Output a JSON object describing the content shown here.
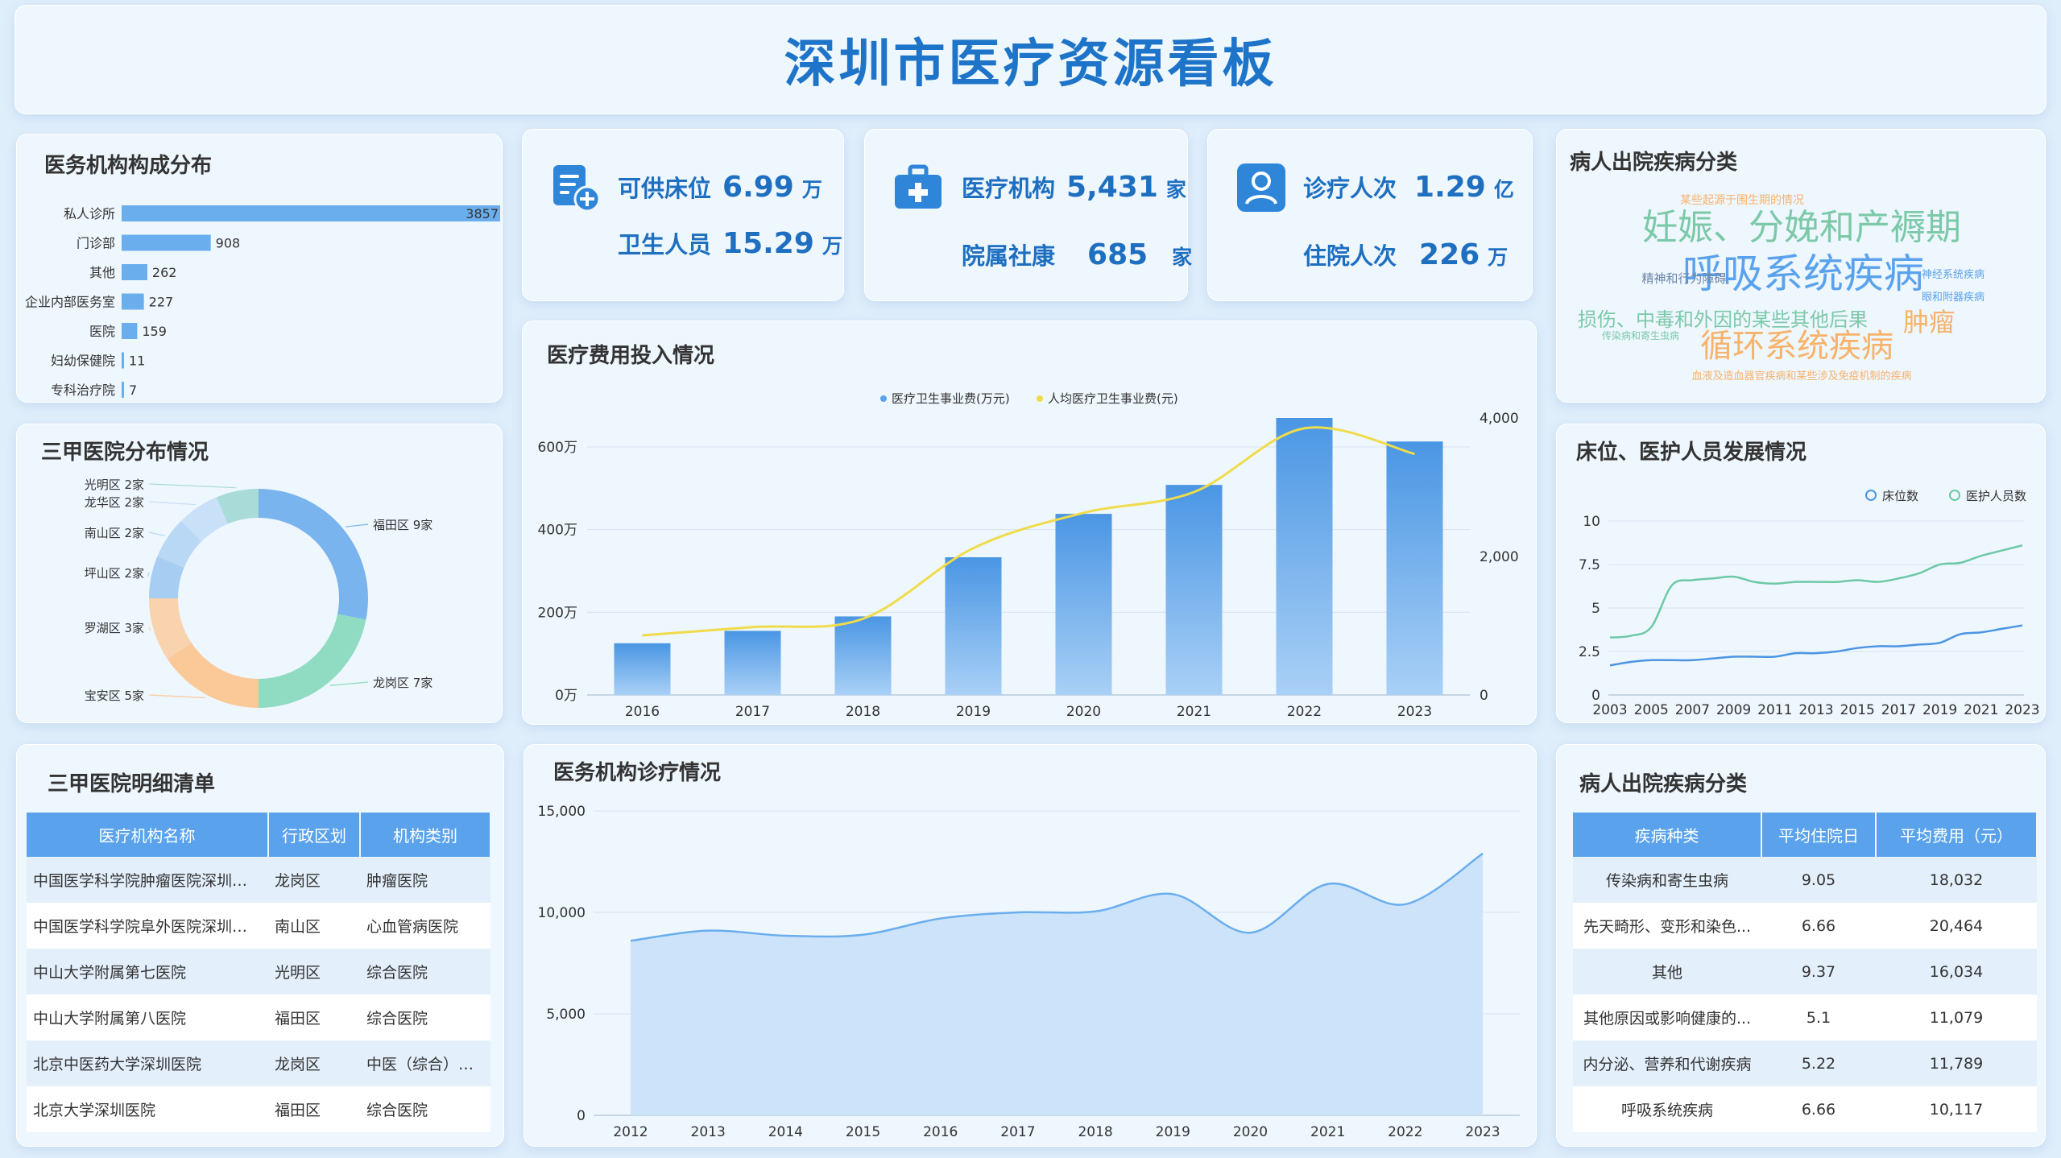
{
  "title": "深圳市医疗资源看板",
  "kpis": {
    "beds": {
      "label": "可供床位",
      "value": "6.99",
      "unit": "万"
    },
    "staff": {
      "label": "卫生人员",
      "value": "15.29",
      "unit": "万"
    },
    "institutions": {
      "label": "医疗机构",
      "value": "5,431",
      "unit": "家"
    },
    "community": {
      "label": "院属社康",
      "value": "685",
      "unit": "家"
    },
    "visits": {
      "label": "诊疗人次",
      "value": "1.29",
      "unit": "亿"
    },
    "inpatients": {
      "label": "住院人次",
      "value": "226",
      "unit": "万"
    }
  },
  "panels": {
    "institution_dist": "医务机构构成分布",
    "tertiary_dist": "三甲医院分布情况",
    "tertiary_list": "三甲医院明细清单",
    "expense": "医疗费用投入情况",
    "visits": "医务机构诊疗情况",
    "wordcloud": "病人出院疾病分类",
    "beds_staff": "床位、医护人员发展情况",
    "disease_table": "病人出院疾病分类"
  },
  "colors": {
    "primary": "#1e74c8",
    "bar": "#5aa3ec",
    "line": "#f0dc4a",
    "green": "#5cc9a0"
  },
  "chart_data": [
    {
      "id": "institution_dist",
      "type": "bar",
      "orientation": "horizontal",
      "categories": [
        "私人诊所",
        "门诊部",
        "其他",
        "企业内部医务室",
        "医院",
        "妇幼保健院",
        "专科治疗院"
      ],
      "values": [
        3857,
        908,
        262,
        227,
        159,
        11,
        7
      ]
    },
    {
      "id": "tertiary_dist",
      "type": "pie",
      "labels": [
        "福田区 9家",
        "龙岗区 7家",
        "宝安区 5家",
        "罗湖区 3家",
        "坪山区 2家",
        "南山区 2家",
        "龙华区 2家",
        "光明区 2家"
      ],
      "values": [
        9,
        7,
        5,
        3,
        2,
        2,
        2,
        2
      ],
      "colors": [
        "#7ab4ee",
        "#8fdcc2",
        "#fbc998",
        "#f9d3ad",
        "#a7cdf3",
        "#b9d8f6",
        "#c8e0f8",
        "#a9dcd8"
      ]
    },
    {
      "id": "expense",
      "type": "bar",
      "categories": [
        "2016",
        "2017",
        "2018",
        "2019",
        "2020",
        "2021",
        "2022",
        "2023"
      ],
      "series": [
        {
          "name": "医疗卫生事业费(万元)",
          "type": "bar",
          "values": [
            1250000,
            1550000,
            1900000,
            3330000,
            4380000,
            5080000,
            6700000,
            6130000
          ]
        },
        {
          "name": "人均医疗卫生事业费(元)",
          "type": "line",
          "axis": "right",
          "values": [
            860,
            980,
            1100,
            2120,
            2630,
            2930,
            3850,
            3480
          ]
        }
      ],
      "y_ticks": [
        "0万",
        "200万",
        "400万",
        "600万"
      ],
      "y2_ticks": [
        "0",
        "2,000",
        "4,000"
      ],
      "ylim": [
        0,
        6700000
      ],
      "y2lim": [
        0,
        4000
      ]
    },
    {
      "id": "visits",
      "type": "area",
      "x": [
        "2012",
        "2013",
        "2014",
        "2015",
        "2016",
        "2017",
        "2018",
        "2019",
        "2020",
        "2021",
        "2022",
        "2023"
      ],
      "values": [
        8600,
        9100,
        8850,
        8900,
        9700,
        10000,
        10050,
        10900,
        9000,
        11400,
        10400,
        12900
      ],
      "y_ticks": [
        "0",
        "5,000",
        "10,000",
        "15,000"
      ],
      "ylim": [
        0,
        15000
      ]
    },
    {
      "id": "beds_staff",
      "type": "line",
      "x": [
        "2003",
        "2004",
        "2005",
        "2006",
        "2007",
        "2008",
        "2009",
        "2010",
        "2011",
        "2012",
        "2013",
        "2014",
        "2015",
        "2016",
        "2017",
        "2018",
        "2019",
        "2020",
        "2021",
        "2022",
        "2023"
      ],
      "x_tick_labels": [
        "2003",
        "2005",
        "2007",
        "2009",
        "2011",
        "2013",
        "2015",
        "2017",
        "2019",
        "2021",
        "2023"
      ],
      "series": [
        {
          "name": "床位数",
          "values": [
            1.7,
            1.9,
            2.0,
            2.0,
            2.0,
            2.1,
            2.2,
            2.2,
            2.2,
            2.4,
            2.4,
            2.5,
            2.7,
            2.8,
            2.8,
            2.9,
            3.0,
            3.5,
            3.6,
            3.8,
            4.0
          ]
        },
        {
          "name": "医护人员数",
          "values": [
            3.3,
            3.4,
            3.9,
            6.3,
            6.6,
            6.7,
            6.8,
            6.5,
            6.4,
            6.5,
            6.5,
            6.5,
            6.6,
            6.5,
            6.7,
            7.0,
            7.5,
            7.6,
            8.0,
            8.3,
            8.6
          ]
        }
      ],
      "y_ticks": [
        "0",
        "2.5",
        "5",
        "7.5",
        "10"
      ],
      "ylim": [
        0,
        10
      ]
    }
  ],
  "wordcloud": [
    {
      "text": "妊娠、分娩和产褥期",
      "color": "#7cc9a8",
      "size": 44
    },
    {
      "text": "呼吸系统疾病",
      "color": "#5aa3ec",
      "size": 50
    },
    {
      "text": "精神和行为障碍",
      "color": "#6a86a8",
      "size": 15
    },
    {
      "text": "损伤、中毒和外因的某些其他后果",
      "color": "#7cc9a8",
      "size": 24
    },
    {
      "text": "肿瘤",
      "color": "#f7b36a",
      "size": 32
    },
    {
      "text": "循环系统疾病",
      "color": "#f7b36a",
      "size": 40
    },
    {
      "text": "某些起源于围生期的情况",
      "color": "#f7b36a",
      "size": 14
    },
    {
      "text": "神经系统疾病",
      "color": "#5aa3ec",
      "size": 13
    },
    {
      "text": "眼和附器疾病",
      "color": "#5aa3ec",
      "size": 13
    },
    {
      "text": "传染病和寄生虫病",
      "color": "#7cc9a8",
      "size": 12
    },
    {
      "text": "血液及造血器官疾病和某些涉及免疫机制的疾病",
      "color": "#f7b36a",
      "size": 13
    }
  ],
  "tertiary_table": {
    "headers": [
      "医疗机构名称",
      "行政区划",
      "机构类别"
    ],
    "rows": [
      [
        "中国医学科学院肿瘤医院深圳医...",
        "龙岗区",
        "肿瘤医院"
      ],
      [
        "中国医学科学院阜外医院深圳医...",
        "南山区",
        "心血管病医院"
      ],
      [
        "中山大学附属第七医院",
        "光明区",
        "综合医院"
      ],
      [
        "中山大学附属第八医院",
        "福田区",
        "综合医院"
      ],
      [
        "北京中医药大学深圳医院",
        "龙岗区",
        "中医（综合）医院"
      ],
      [
        "北京大学深圳医院",
        "福田区",
        "综合医院"
      ]
    ]
  },
  "disease_table": {
    "headers": [
      "疾病种类",
      "平均住院日",
      "平均费用（元）"
    ],
    "rows": [
      [
        "传染病和寄生虫病",
        "9.05",
        "18,032"
      ],
      [
        "先天畸形、变形和染色...",
        "6.66",
        "20,464"
      ],
      [
        "其他",
        "9.37",
        "16,034"
      ],
      [
        "其他原因或影响健康的...",
        "5.1",
        "11,079"
      ],
      [
        "内分泌、营养和代谢疾病",
        "5.22",
        "11,789"
      ],
      [
        "呼吸系统疾病",
        "6.66",
        "10,117"
      ]
    ]
  }
}
